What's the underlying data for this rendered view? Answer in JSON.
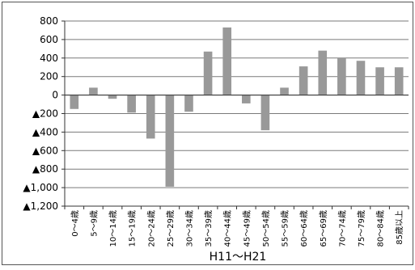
{
  "chart_data": {
    "type": "bar",
    "title": "",
    "xlabel": "H11～H21",
    "ylabel": "",
    "ylim": [
      -1200,
      800
    ],
    "grid": true,
    "legend": "none",
    "y_ticks": [
      800,
      600,
      400,
      200,
      0,
      -200,
      -400,
      -600,
      -800,
      -1000,
      -1200
    ],
    "y_tick_labels": [
      "800",
      "600",
      "400",
      "200",
      "0",
      "▲200",
      "▲400",
      "▲600",
      "▲800",
      "▲1,000",
      "▲1,200"
    ],
    "categories": [
      "0～4歳",
      "5～9歳",
      "10～14歳",
      "15～19歳",
      "20～24歳",
      "25～29歳",
      "30～34歳",
      "35～39歳",
      "40～44歳",
      "45～49歳",
      "50～54歳",
      "55～59歳",
      "60～64歳",
      "65～69歳",
      "70～74歳",
      "75～79歳",
      "80～84歳",
      "85歳以上"
    ],
    "values": [
      -150,
      80,
      -40,
      -190,
      -470,
      -990,
      -180,
      470,
      730,
      -90,
      -380,
      80,
      310,
      480,
      400,
      370,
      300,
      300
    ],
    "bar_color": "#999999"
  }
}
